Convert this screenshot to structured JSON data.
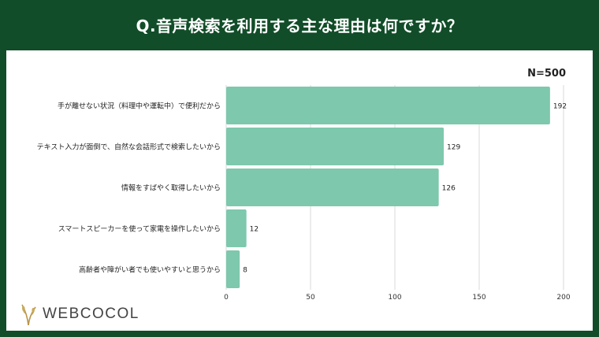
{
  "header": {
    "title": "Q.音声検索を利用する主な理由は何ですか？"
  },
  "sample_size": "N=500",
  "brand": {
    "name": "WEBCOCOL"
  },
  "colors": {
    "bar": "#7ec8ad",
    "background": "#114d28",
    "grid": "#d9d9d9"
  },
  "chart_data": {
    "type": "bar",
    "orientation": "horizontal",
    "categories": [
      "手が離せない状況（料理中や運転中）で便利だから",
      "テキスト入力が面倒で、自然な会話形式で検索したいから",
      "情報をすばやく取得したいから",
      "スマートスピーカーを使って家電を操作したいから",
      "高齢者や障がい者でも使いやすいと思うから"
    ],
    "values": [
      192,
      129,
      126,
      12,
      8
    ],
    "xlim": [
      0,
      200
    ],
    "xticks": [
      0,
      50,
      100,
      150,
      200
    ],
    "grid": true
  }
}
